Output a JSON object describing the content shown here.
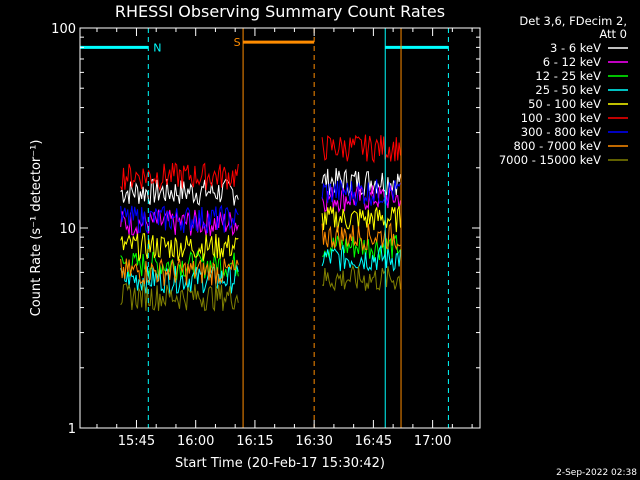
{
  "chart_data": {
    "type": "line",
    "title": "RHESSI Observing Summary Count Rates",
    "xlabel": "Start Time (20-Feb-17 15:30:42)",
    "ylabel": "Count Rate (s⁻¹ detector⁻¹)",
    "yscale": "log",
    "ylim": [
      1,
      100
    ],
    "xlim": [
      "15:30:42",
      "17:12"
    ],
    "x_tick_labels": [
      "15:45",
      "16:00",
      "16:15",
      "16:30",
      "16:45",
      "17:00"
    ],
    "y_tick_labels": [
      "1",
      "10",
      "100"
    ],
    "grid": false,
    "legend_position": "top-right",
    "legend_header": [
      "Det 3,6, FDecim 2,",
      "Att 0"
    ],
    "series": [
      {
        "name": "3 - 6 keV",
        "color": "#ffffff",
        "segments": [
          {
            "x": [
              "15:41",
              "16:11"
            ],
            "y": 15
          },
          {
            "x": [
              "16:32",
              "16:52"
            ],
            "y": 17
          }
        ]
      },
      {
        "name": "6 - 12 keV",
        "color": "#ff00ff",
        "segments": [
          {
            "x": [
              "15:41",
              "16:11"
            ],
            "y": 10.5
          },
          {
            "x": [
              "16:32",
              "16:52"
            ],
            "y": 14
          }
        ]
      },
      {
        "name": "12 - 25 keV",
        "color": "#00ff00",
        "segments": [
          {
            "x": [
              "15:41",
              "16:11"
            ],
            "y": 6.5
          },
          {
            "x": [
              "16:32",
              "16:52"
            ],
            "y": 8
          }
        ]
      },
      {
        "name": "25 - 50 keV",
        "color": "#00ffff",
        "segments": [
          {
            "x": [
              "15:41",
              "16:11"
            ],
            "y": 5.5
          },
          {
            "x": [
              "16:32",
              "16:52"
            ],
            "y": 7
          }
        ]
      },
      {
        "name": "50 - 100 keV",
        "color": "#ffff00",
        "segments": [
          {
            "x": [
              "15:41",
              "16:11"
            ],
            "y": 8
          },
          {
            "x": [
              "16:32",
              "16:52"
            ],
            "y": 11
          }
        ]
      },
      {
        "name": "100 - 300 keV",
        "color": "#ff0000",
        "segments": [
          {
            "x": [
              "15:41",
              "16:11"
            ],
            "y": 18
          },
          {
            "x": [
              "16:32",
              "16:52"
            ],
            "y": 25
          }
        ]
      },
      {
        "name": "300 - 800 keV",
        "color": "#0000ff",
        "segments": [
          {
            "x": [
              "15:41",
              "16:11"
            ],
            "y": 11
          },
          {
            "x": [
              "16:32",
              "16:52"
            ],
            "y": 15
          }
        ]
      },
      {
        "name": "800 - 7000 keV",
        "color": "#ff8c00",
        "segments": [
          {
            "x": [
              "15:41",
              "16:11"
            ],
            "y": 6
          },
          {
            "x": [
              "16:32",
              "16:52"
            ],
            "y": 9
          }
        ]
      },
      {
        "name": "7000 - 15000 keV",
        "color": "#808000",
        "segments": [
          {
            "x": [
              "15:41",
              "16:11"
            ],
            "y": 4.5
          },
          {
            "x": [
              "16:32",
              "16:52"
            ],
            "y": 5.5
          }
        ]
      }
    ],
    "annotations": [
      {
        "label": "N",
        "color": "#00ffff",
        "start": "15:30:42",
        "end": "15:48",
        "y": 80,
        "solid_line_at": null,
        "dashed_line_at": "15:48"
      },
      {
        "label": "S",
        "color": "#ff8c00",
        "start": "16:12",
        "end": "16:30",
        "y": 85,
        "solid_line_at": "16:12",
        "dashed_line_at": "16:30"
      },
      {
        "label": "",
        "color": "#00ffff",
        "start": "16:48",
        "end": "17:04",
        "y": 80,
        "solid_line_at": "16:48",
        "dashed_line_at": "17:04"
      },
      {
        "label": "",
        "color": "#ff8c00",
        "start": null,
        "end": null,
        "y": null,
        "solid_line_at": "16:52",
        "dashed_line_at": null
      }
    ]
  },
  "footer": {
    "date": "2-Sep-2022 02:38"
  }
}
